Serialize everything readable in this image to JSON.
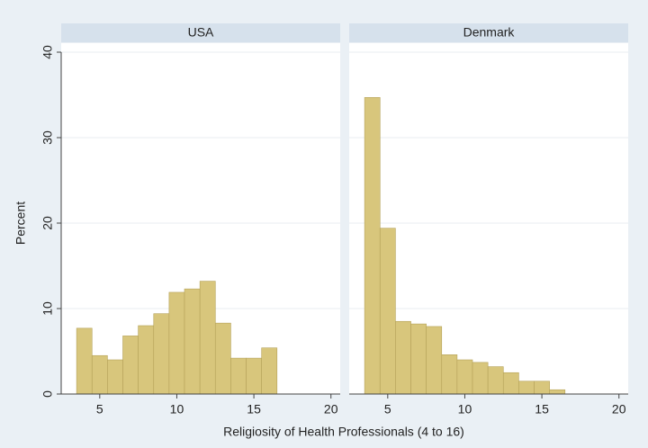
{
  "chart_data": {
    "type": "histogram",
    "x_label": "Religiosity of Health Professionals (4 to 16)",
    "y_label": "Percent",
    "color": "#d8c67c",
    "edge_color": "#b5a259",
    "grid": true,
    "xlim": [
      2.5,
      20.6
    ],
    "xticks": [
      5,
      10,
      15,
      20
    ],
    "ylim": [
      0,
      40
    ],
    "yticks": [
      0,
      10,
      20,
      30,
      40
    ],
    "panels": [
      {
        "title": "USA",
        "bins": [
          3.5,
          4.5,
          5.5,
          6.5,
          7.5,
          8.5,
          9.5,
          10.5,
          11.5,
          12.5,
          13.5,
          14.5,
          15.5,
          16.5
        ],
        "values": [
          7.7,
          4.5,
          4.0,
          6.8,
          8.0,
          9.4,
          11.9,
          12.3,
          13.2,
          8.3,
          4.2,
          4.2,
          5.4
        ]
      },
      {
        "title": "Denmark",
        "bins": [
          3.5,
          4.5,
          5.5,
          6.5,
          7.5,
          8.5,
          9.5,
          10.5,
          11.5,
          12.5,
          13.5,
          14.5,
          15.5,
          16.5
        ],
        "values": [
          34.7,
          19.4,
          8.5,
          8.2,
          7.9,
          4.6,
          4.0,
          3.7,
          3.2,
          2.5,
          1.5,
          1.5,
          0.5
        ]
      }
    ]
  }
}
